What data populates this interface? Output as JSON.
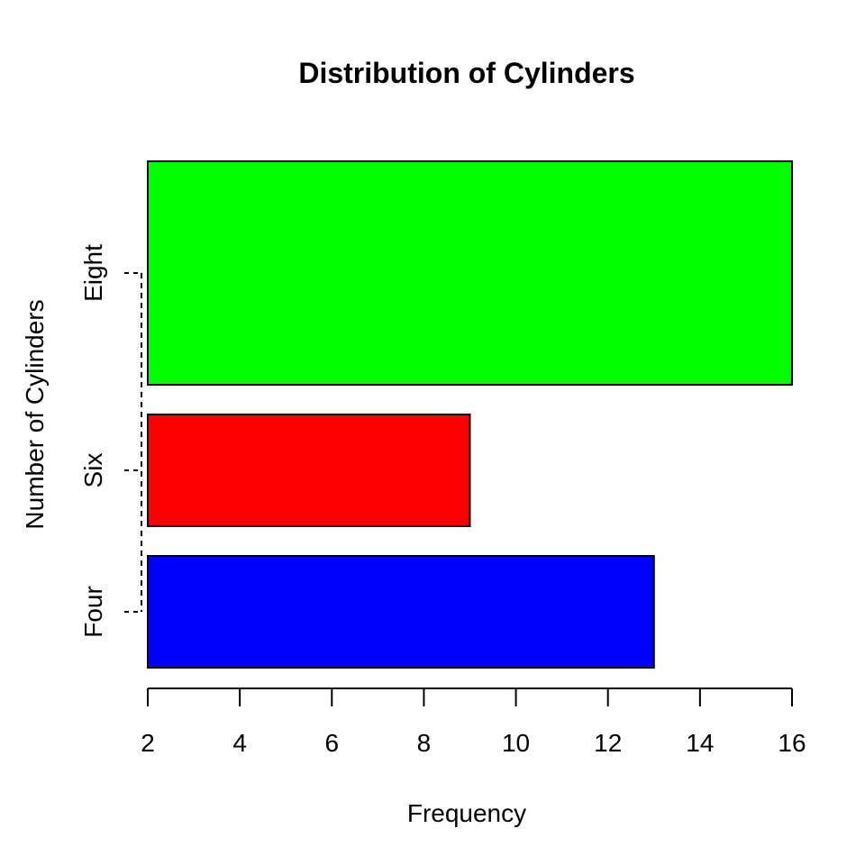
{
  "chart_data": {
    "type": "bar",
    "orientation": "horizontal",
    "title": "Distribution of Cylinders",
    "xlabel": "Frequency",
    "ylabel": "Number of Cylinders",
    "categories": [
      "Four",
      "Six",
      "Eight"
    ],
    "values": [
      13,
      9,
      16
    ],
    "colors": [
      "#0000ff",
      "#ff0000",
      "#00ff00"
    ],
    "xlim": [
      2,
      16
    ],
    "xticks": [
      2,
      4,
      6,
      8,
      10,
      12,
      14,
      16
    ],
    "grid": false,
    "legend": "none"
  }
}
